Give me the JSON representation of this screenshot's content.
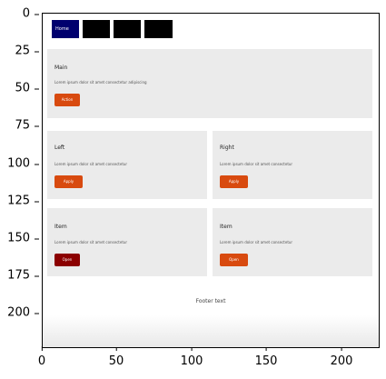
{
  "axes": {
    "y_ticks": [
      "0",
      "25",
      "50",
      "75",
      "100",
      "125",
      "150",
      "175",
      "200"
    ],
    "x_ticks": [
      "0",
      "50",
      "100",
      "150",
      "200"
    ]
  },
  "tabs": [
    {
      "label": "Home",
      "active": true
    },
    {
      "label": "",
      "active": false
    },
    {
      "label": "",
      "active": false
    },
    {
      "label": "",
      "active": false
    }
  ],
  "panels": {
    "top": {
      "title": "Main",
      "desc": "Lorem ipsum dolor sit amet consectetur adipiscing",
      "button": "Action"
    },
    "mid_left": {
      "title": "Left",
      "desc": "Lorem ipsum dolor sit amet consectetur",
      "button": "Apply"
    },
    "mid_right": {
      "title": "Right",
      "desc": "Lorem ipsum dolor sit amet consectetur",
      "button": "Apply"
    },
    "bot_left": {
      "title": "Item",
      "desc": "Lorem ipsum dolor sit amet consectetur",
      "button": "Open"
    },
    "bot_right": {
      "title": "Item",
      "desc": "Lorem ipsum dolor sit amet consectetur",
      "button": "Open"
    }
  },
  "footer": "Footer text",
  "colors": {
    "primary": "#00006e",
    "button": "#d84a0f",
    "button_dark": "#8b0000",
    "panel": "#ebebeb"
  }
}
